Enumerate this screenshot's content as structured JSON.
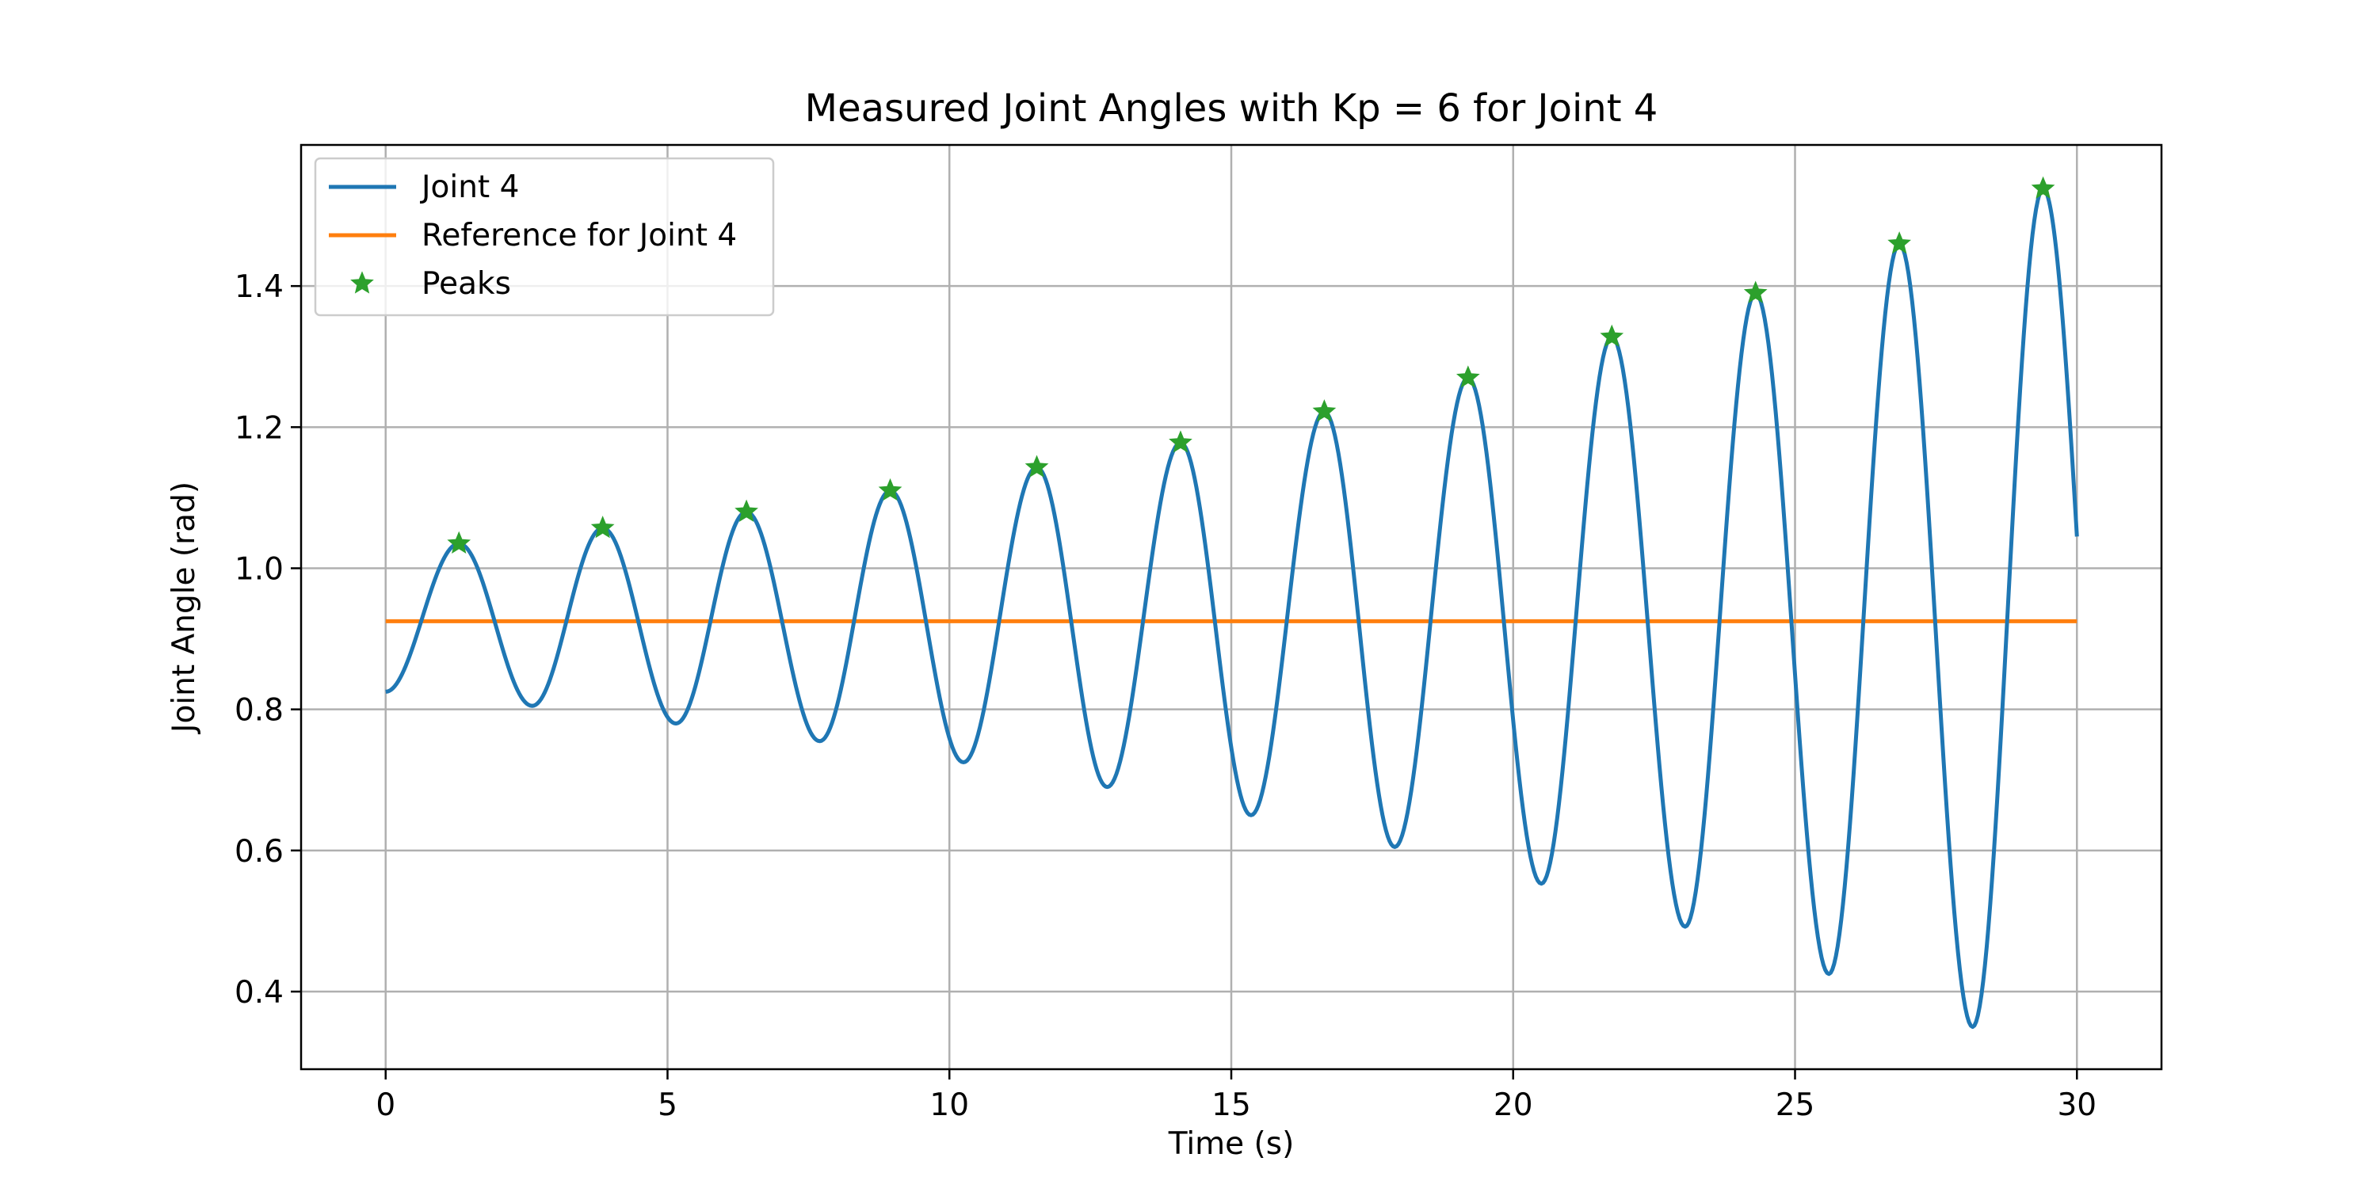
{
  "chart_data": {
    "type": "line",
    "title": "Measured Joint Angles with Kp = 6 for Joint 4",
    "xlabel": "Time (s)",
    "ylabel": "Joint Angle (rad)",
    "xlim": [
      -1.5,
      31.5
    ],
    "ylim": [
      0.29,
      1.6
    ],
    "xticks": [
      0,
      5,
      10,
      15,
      20,
      25,
      30
    ],
    "yticks": [
      0.4,
      0.6,
      0.8,
      1.0,
      1.2,
      1.4
    ],
    "xtick_labels": [
      "0",
      "5",
      "10",
      "15",
      "20",
      "25",
      "30"
    ],
    "ytick_labels": [
      "0.4",
      "0.6",
      "0.8",
      "1.0",
      "1.2",
      "1.4"
    ],
    "grid": true,
    "legend_position": "top-left",
    "legend": [
      "Joint 4",
      "Reference for Joint 4",
      "Peaks"
    ],
    "colors": {
      "joint": "#1f77b4",
      "reference": "#ff7f0e",
      "peaks": "#2ca02c"
    },
    "series": [
      {
        "name": "Joint 4",
        "type": "line",
        "x": [
          0,
          1.3,
          2.6,
          3.85,
          5.15,
          6.4,
          7.7,
          8.95,
          10.25,
          11.55,
          12.8,
          14.1,
          15.35,
          16.65,
          17.9,
          19.2,
          20.5,
          21.75,
          23.05,
          24.3,
          25.6,
          26.85,
          28.15,
          29.4,
          30
        ],
        "y": [
          0.825,
          1.035,
          0.805,
          1.057,
          0.78,
          1.08,
          0.755,
          1.11,
          0.725,
          1.143,
          0.69,
          1.178,
          0.65,
          1.222,
          0.605,
          1.27,
          0.553,
          1.328,
          0.492,
          1.39,
          0.425,
          1.46,
          0.35,
          1.538,
          1.045
        ]
      },
      {
        "name": "Reference for Joint 4",
        "type": "line",
        "x": [
          0,
          30
        ],
        "y": [
          0.925,
          0.925
        ]
      },
      {
        "name": "Peaks",
        "type": "scatter",
        "marker": "star",
        "x": [
          1.3,
          3.85,
          6.4,
          8.95,
          11.55,
          14.1,
          16.65,
          19.2,
          21.75,
          24.3,
          26.85,
          29.4
        ],
        "y": [
          1.035,
          1.057,
          1.08,
          1.11,
          1.143,
          1.178,
          1.222,
          1.27,
          1.328,
          1.39,
          1.46,
          1.538
        ]
      }
    ]
  }
}
